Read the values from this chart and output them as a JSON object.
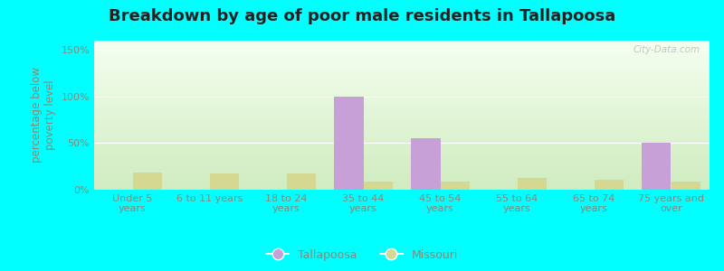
{
  "title": "Breakdown by age of poor male residents in Tallapoosa",
  "ylabel_line1": "percentage below",
  "ylabel_line2": "poverty level",
  "categories": [
    "Under 5\nyears",
    "6 to 11 years",
    "18 to 24\nyears",
    "35 to 44\nyears",
    "45 to 54\nyears",
    "55 to 64\nyears",
    "65 to 74\nyears",
    "75 years and\nover"
  ],
  "tallapoosa": [
    0,
    0,
    0,
    100,
    55,
    0,
    0,
    50
  ],
  "missouri": [
    18,
    17,
    17,
    9,
    9,
    13,
    11,
    9
  ],
  "tallapoosa_color": "#c8a0d8",
  "missouri_color": "#d4d890",
  "outer_background": "#00ffff",
  "grad_bottom": "#d0ecc0",
  "grad_top": "#f5fff0",
  "yticks": [
    0,
    50,
    100,
    150
  ],
  "ylim": [
    0,
    160
  ],
  "bar_width": 0.38,
  "title_fontsize": 13,
  "tick_fontsize": 8,
  "ylabel_fontsize": 8.5,
  "watermark": "City-Data.com",
  "label_color": "#888877",
  "title_color": "#222222"
}
